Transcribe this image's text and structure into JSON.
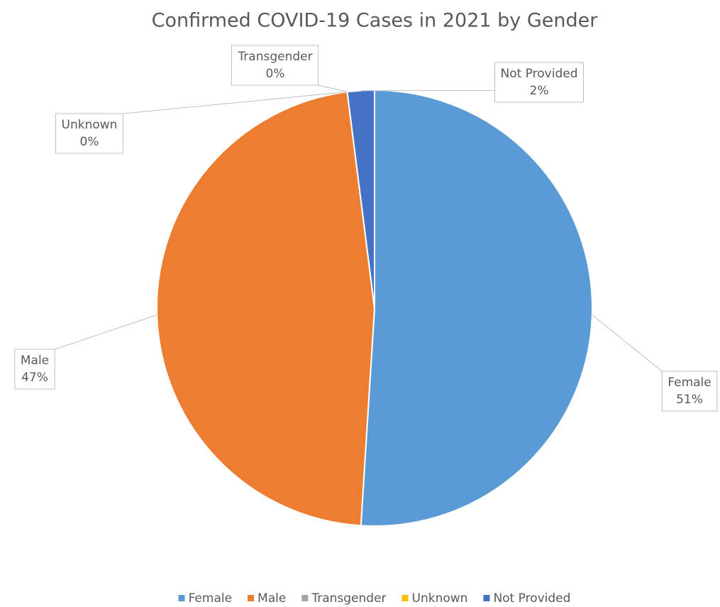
{
  "chart_data": {
    "type": "pie",
    "title": "Confirmed COVID-19 Cases in 2021 by Gender",
    "categories": [
      "Female",
      "Male",
      "Transgender",
      "Unknown",
      "Not Provided"
    ],
    "values": [
      51,
      47,
      0,
      0,
      2
    ],
    "value_labels": [
      "51%",
      "47%",
      "0%",
      "0%",
      "2%"
    ],
    "colors": [
      "#5b9bd5",
      "#ed7d31",
      "#a5a5a5",
      "#ffc000",
      "#4472c4"
    ],
    "legend": "bottom"
  }
}
